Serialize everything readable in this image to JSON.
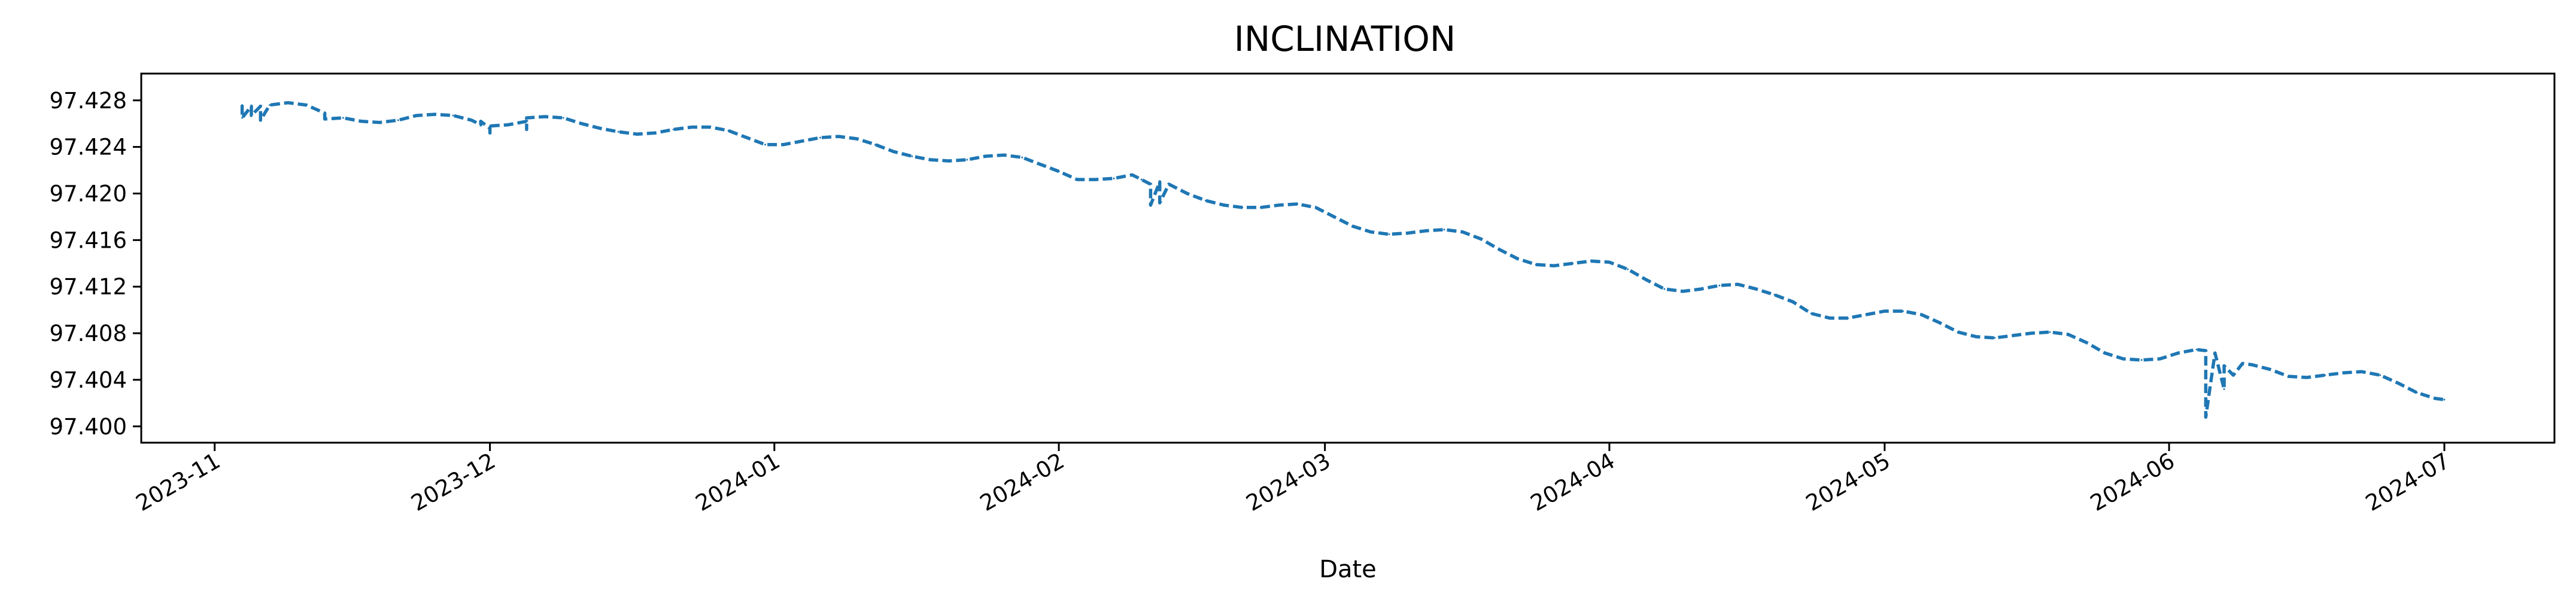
{
  "chart_data": {
    "type": "line",
    "title": "INCLINATION",
    "xlabel": "Date",
    "ylabel": "",
    "xlim": [
      "2023-10-24",
      "2024-07-13"
    ],
    "ylim": [
      97.3986,
      97.4303
    ],
    "grid": false,
    "line_style": "dashed",
    "x_ticks": [
      "2023-11",
      "2023-12",
      "2024-01",
      "2024-02",
      "2024-03",
      "2024-04",
      "2024-05",
      "2024-06",
      "2024-07"
    ],
    "y_ticks": [
      "97.400",
      "97.404",
      "97.408",
      "97.412",
      "97.416",
      "97.420",
      "97.424",
      "97.428"
    ],
    "series": [
      {
        "color": "#1f77b4",
        "points": [
          [
            "2023-11-04",
            97.4276
          ],
          [
            "2023-11-04",
            97.4265
          ],
          [
            "2023-11-05",
            97.4275
          ],
          [
            "2023-11-05",
            97.4267
          ],
          [
            "2023-11-06",
            97.4275
          ],
          [
            "2023-11-06",
            97.4263
          ],
          [
            "2023-11-07",
            97.4276
          ],
          [
            "2023-11-09",
            97.4278
          ],
          [
            "2023-11-11",
            97.4276
          ],
          [
            "2023-11-13",
            97.4269
          ],
          [
            "2023-11-13",
            97.4264
          ],
          [
            "2023-11-15",
            97.4265
          ],
          [
            "2023-11-17",
            97.4262
          ],
          [
            "2023-11-19",
            97.4261
          ],
          [
            "2023-11-21",
            97.4263
          ],
          [
            "2023-11-23",
            97.4267
          ],
          [
            "2023-11-25",
            97.4268
          ],
          [
            "2023-11-27",
            97.4267
          ],
          [
            "2023-11-29",
            97.4263
          ],
          [
            "2023-11-30",
            97.4259
          ],
          [
            "2023-11-30",
            97.4262
          ],
          [
            "2023-12-01",
            97.4256
          ],
          [
            "2023-12-01",
            97.4252
          ],
          [
            "2023-12-01",
            97.4258
          ],
          [
            "2023-12-03",
            97.4259
          ],
          [
            "2023-12-05",
            97.4262
          ],
          [
            "2023-12-05",
            97.4255
          ],
          [
            "2023-12-05",
            97.4265
          ],
          [
            "2023-12-07",
            97.4266
          ],
          [
            "2023-12-09",
            97.4265
          ],
          [
            "2023-12-11",
            97.426
          ],
          [
            "2023-12-13",
            97.4256
          ],
          [
            "2023-12-15",
            97.4253
          ],
          [
            "2023-12-17",
            97.4251
          ],
          [
            "2023-12-19",
            97.4252
          ],
          [
            "2023-12-21",
            97.4255
          ],
          [
            "2023-12-23",
            97.4257
          ],
          [
            "2023-12-25",
            97.4257
          ],
          [
            "2023-12-27",
            97.4254
          ],
          [
            "2023-12-29",
            97.4248
          ],
          [
            "2023-12-31",
            97.4242
          ],
          [
            "2024-01-02",
            97.4242
          ],
          [
            "2024-01-04",
            97.4245
          ],
          [
            "2024-01-06",
            97.4248
          ],
          [
            "2024-01-08",
            97.4249
          ],
          [
            "2024-01-10",
            97.4247
          ],
          [
            "2024-01-12",
            97.4242
          ],
          [
            "2024-01-14",
            97.4236
          ],
          [
            "2024-01-16",
            97.4232
          ],
          [
            "2024-01-18",
            97.4229
          ],
          [
            "2024-01-20",
            97.4228
          ],
          [
            "2024-01-22",
            97.4229
          ],
          [
            "2024-01-24",
            97.4232
          ],
          [
            "2024-01-26",
            97.4233
          ],
          [
            "2024-01-28",
            97.4231
          ],
          [
            "2024-01-30",
            97.4225
          ],
          [
            "2024-02-01",
            97.4219
          ],
          [
            "2024-02-03",
            97.4212
          ],
          [
            "2024-02-05",
            97.4212
          ],
          [
            "2024-02-07",
            97.4213
          ],
          [
            "2024-02-09",
            97.4216
          ],
          [
            "2024-02-10",
            97.4212
          ],
          [
            "2024-02-11",
            97.4208
          ],
          [
            "2024-02-11",
            97.419
          ],
          [
            "2024-02-12",
            97.421
          ],
          [
            "2024-02-12",
            97.4192
          ],
          [
            "2024-02-13",
            97.4208
          ],
          [
            "2024-02-15",
            97.42
          ],
          [
            "2024-02-17",
            97.4194
          ],
          [
            "2024-02-19",
            97.419
          ],
          [
            "2024-02-21",
            97.4188
          ],
          [
            "2024-02-23",
            97.4188
          ],
          [
            "2024-02-25",
            97.419
          ],
          [
            "2024-02-27",
            97.4191
          ],
          [
            "2024-02-29",
            97.4188
          ],
          [
            "2024-03-02",
            97.418
          ],
          [
            "2024-03-04",
            97.4172
          ],
          [
            "2024-03-06",
            97.4167
          ],
          [
            "2024-03-08",
            97.4165
          ],
          [
            "2024-03-10",
            97.4166
          ],
          [
            "2024-03-12",
            97.4168
          ],
          [
            "2024-03-14",
            97.4169
          ],
          [
            "2024-03-16",
            97.4167
          ],
          [
            "2024-03-18",
            97.4161
          ],
          [
            "2024-03-20",
            97.4152
          ],
          [
            "2024-03-22",
            97.4144
          ],
          [
            "2024-03-24",
            97.4139
          ],
          [
            "2024-03-26",
            97.4138
          ],
          [
            "2024-03-28",
            97.414
          ],
          [
            "2024-03-30",
            97.4142
          ],
          [
            "2024-04-01",
            97.4141
          ],
          [
            "2024-04-03",
            97.4135
          ],
          [
            "2024-04-05",
            97.4126
          ],
          [
            "2024-04-07",
            97.4118
          ],
          [
            "2024-04-09",
            97.4116
          ],
          [
            "2024-04-11",
            97.4118
          ],
          [
            "2024-04-13",
            97.4121
          ],
          [
            "2024-04-15",
            97.4122
          ],
          [
            "2024-04-17",
            97.4118
          ],
          [
            "2024-04-19",
            97.4113
          ],
          [
            "2024-04-21",
            97.4107
          ],
          [
            "2024-04-23",
            97.4097
          ],
          [
            "2024-04-25",
            97.4093
          ],
          [
            "2024-04-27",
            97.4093
          ],
          [
            "2024-04-29",
            97.4096
          ],
          [
            "2024-05-01",
            97.4099
          ],
          [
            "2024-05-03",
            97.4099
          ],
          [
            "2024-05-05",
            97.4096
          ],
          [
            "2024-05-07",
            97.4089
          ],
          [
            "2024-05-09",
            97.4081
          ],
          [
            "2024-05-11",
            97.4077
          ],
          [
            "2024-05-13",
            97.4076
          ],
          [
            "2024-05-15",
            97.4078
          ],
          [
            "2024-05-17",
            97.408
          ],
          [
            "2024-05-19",
            97.4081
          ],
          [
            "2024-05-21",
            97.4079
          ],
          [
            "2024-05-23",
            97.4072
          ],
          [
            "2024-05-25",
            97.4063
          ],
          [
            "2024-05-27",
            97.4058
          ],
          [
            "2024-05-29",
            97.4057
          ],
          [
            "2024-05-31",
            97.4058
          ],
          [
            "2024-06-02",
            97.4063
          ],
          [
            "2024-06-04",
            97.4066
          ],
          [
            "2024-06-05",
            97.4065
          ],
          [
            "2024-06-05",
            97.4008
          ],
          [
            "2024-06-06",
            97.4063
          ],
          [
            "2024-06-07",
            97.4032
          ],
          [
            "2024-06-07",
            97.4052
          ],
          [
            "2024-06-08",
            97.4044
          ],
          [
            "2024-06-09",
            97.4054
          ],
          [
            "2024-06-10",
            97.4053
          ],
          [
            "2024-06-12",
            97.4049
          ],
          [
            "2024-06-14",
            97.4043
          ],
          [
            "2024-06-16",
            97.4042
          ],
          [
            "2024-06-18",
            97.4044
          ],
          [
            "2024-06-20",
            97.4046
          ],
          [
            "2024-06-22",
            97.4047
          ],
          [
            "2024-06-24",
            97.4044
          ],
          [
            "2024-06-26",
            97.4037
          ],
          [
            "2024-06-28",
            97.4029
          ],
          [
            "2024-06-30",
            97.4024
          ],
          [
            "2024-07-01",
            97.4023
          ]
        ]
      }
    ]
  }
}
